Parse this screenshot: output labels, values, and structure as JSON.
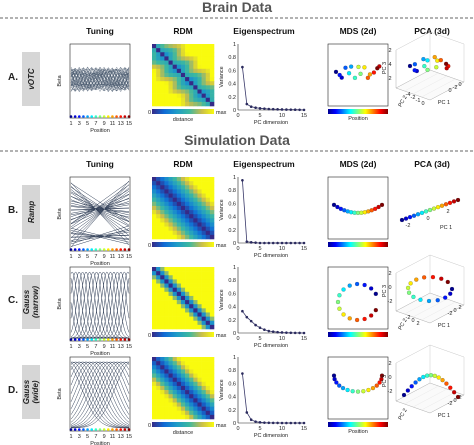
{
  "sections": {
    "brain": "Brain Data",
    "simulation": "Simulation Data"
  },
  "columns": {
    "tuning": "Tuning",
    "rdm": "RDM",
    "eigen": "Eigenspectrum",
    "mds": "MDS (2d)",
    "pca": "PCA (3d)"
  },
  "rows": [
    {
      "letter": "A.",
      "label": [
        "vOTC"
      ]
    },
    {
      "letter": "B.",
      "label": [
        "Ramp"
      ]
    },
    {
      "letter": "C.",
      "label": [
        "Gauss",
        "(narrow)"
      ]
    },
    {
      "letter": "D.",
      "label": [
        "Gauss",
        "(wide)"
      ]
    }
  ],
  "axes": {
    "tuning_ylabel": "Beta",
    "tuning_xlabel": "Position",
    "tuning_xticks": [
      "1",
      "3",
      "5",
      "7",
      "9",
      "11",
      "13",
      "15"
    ],
    "rdm_xlabel": "distance",
    "rdm_min": "0",
    "rdm_max": "max",
    "eigen_ylabel": "Variance",
    "eigen_xlabel": "PC dimension",
    "eigen_xticks": [
      "0",
      "5",
      "10",
      "15"
    ],
    "eigen_yticks": [
      "0",
      "0.2",
      "0.4",
      "0.6",
      "0.8",
      "1"
    ],
    "mds_xlabel": "Position"
  },
  "pca_labels": {
    "A": {
      "pc1": "PC 1",
      "pc2": "PC 2",
      "pc3": "PC 3",
      "ticks": [
        "2",
        "4",
        "2",
        "0",
        "-2",
        "0",
        "-4",
        "-2",
        "-1",
        "0"
      ]
    },
    "B": {
      "pc1": "PC 1",
      "ticks": [
        "-2",
        "0",
        "2"
      ]
    },
    "C": {
      "pc1": "PC 1",
      "pc2": "PC 2",
      "pc3": "PC 3",
      "ticks": [
        "2",
        "0",
        "-2",
        "-2",
        "0",
        "2",
        "-2",
        "0",
        "2"
      ]
    },
    "D": {
      "pc1": "PC 1",
      "pc2": "PC 2",
      "pc3": "PC 3",
      "ticks": [
        "2",
        "0",
        "-2",
        "-2",
        "0",
        "2"
      ]
    }
  },
  "chart_data": [
    {
      "type": "line",
      "title": "Eigenspectrum",
      "row": "A",
      "xlabel": "PC dimension",
      "ylabel": "Variance",
      "xlim": [
        0,
        15
      ],
      "ylim": [
        0,
        1
      ],
      "x": [
        1,
        2,
        3,
        4,
        5,
        6,
        7,
        8,
        9,
        10,
        11,
        12,
        13,
        14,
        15
      ],
      "values": [
        0.65,
        0.09,
        0.05,
        0.035,
        0.025,
        0.02,
        0.015,
        0.012,
        0.01,
        0.008,
        0.006,
        0.005,
        0.004,
        0.003,
        0.002
      ]
    },
    {
      "type": "line",
      "title": "Eigenspectrum",
      "row": "B",
      "xlabel": "PC dimension",
      "ylabel": "Variance",
      "xlim": [
        0,
        15
      ],
      "ylim": [
        0,
        1
      ],
      "x": [
        1,
        2,
        3,
        4,
        5,
        6,
        7,
        8,
        9,
        10,
        11,
        12,
        13,
        14,
        15
      ],
      "values": [
        0.95,
        0.02,
        0.01,
        0.005,
        0,
        0,
        0,
        0,
        0,
        0,
        0,
        0,
        0,
        0,
        0
      ]
    },
    {
      "type": "line",
      "title": "Eigenspectrum",
      "row": "C",
      "xlabel": "PC dimension",
      "ylabel": "Variance",
      "xlim": [
        0,
        15
      ],
      "ylim": [
        0,
        1
      ],
      "x": [
        1,
        2,
        3,
        4,
        5,
        6,
        7,
        8,
        9,
        10,
        11,
        12,
        13,
        14,
        15
      ],
      "values": [
        0.33,
        0.24,
        0.18,
        0.12,
        0.08,
        0.05,
        0.03,
        0.02,
        0.012,
        0.008,
        0.005,
        0.003,
        0.002,
        0.001,
        0
      ]
    },
    {
      "type": "line",
      "title": "Eigenspectrum",
      "row": "D",
      "xlabel": "PC dimension",
      "ylabel": "Variance",
      "xlim": [
        0,
        15
      ],
      "ylim": [
        0,
        1
      ],
      "x": [
        1,
        2,
        3,
        4,
        5,
        6,
        7,
        8,
        9,
        10,
        11,
        12,
        13,
        14,
        15
      ],
      "values": [
        0.75,
        0.16,
        0.05,
        0.02,
        0.01,
        0.005,
        0.003,
        0.002,
        0.001,
        0,
        0,
        0,
        0,
        0,
        0
      ]
    }
  ],
  "colors": {
    "dots": [
      "#9e0142",
      "#d53e4f",
      "#f46d43",
      "#fdae61",
      "#fee08b",
      "#e6f598",
      "#abdda4",
      "#66c2a5",
      "#3288bd",
      "#5e4fa2"
    ]
  }
}
